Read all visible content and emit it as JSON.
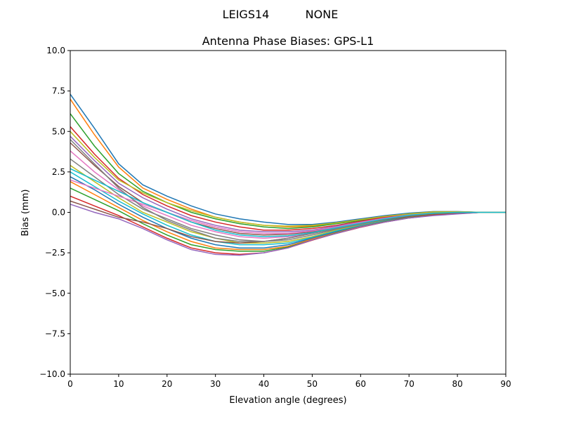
{
  "figure": {
    "suptitle_left": "LEIGS14",
    "suptitle_right": "NONE"
  },
  "chart_data": {
    "type": "line",
    "title": "Antenna Phase Biases: GPS-L1",
    "xlabel": "Elevation angle (degrees)",
    "ylabel": "Bias (mm)",
    "xlim": [
      0,
      90
    ],
    "ylim": [
      -10,
      10
    ],
    "xticks": [
      "0",
      "10",
      "20",
      "30",
      "40",
      "50",
      "60",
      "70",
      "80",
      "90"
    ],
    "yticks": [
      "−10.0",
      "−7.5",
      "−5.0",
      "−2.5",
      "0.0",
      "2.5",
      "5.0",
      "7.5",
      "10.0"
    ],
    "grid": false,
    "legend": "none",
    "colors": [
      "#1f77b4",
      "#ff7f0e",
      "#2ca02c",
      "#d62728",
      "#9467bd",
      "#8c564b",
      "#e377c2",
      "#7f7f7f",
      "#bcbd22",
      "#17becf"
    ],
    "x": [
      0,
      5,
      10,
      15,
      20,
      25,
      30,
      35,
      40,
      45,
      50,
      55,
      60,
      65,
      70,
      75,
      80,
      85,
      90
    ],
    "series": [
      {
        "values": [
          7.3,
          5.2,
          3.0,
          1.7,
          1.0,
          0.4,
          -0.1,
          -0.4,
          -0.6,
          -0.75,
          -0.75,
          -0.6,
          -0.4,
          -0.2,
          -0.05,
          0.05,
          0.05,
          0,
          0
        ]
      },
      {
        "values": [
          7.0,
          4.8,
          2.8,
          1.5,
          0.8,
          0.2,
          -0.3,
          -0.6,
          -0.8,
          -0.9,
          -0.85,
          -0.65,
          -0.45,
          -0.25,
          -0.1,
          0.03,
          0.04,
          0,
          0
        ]
      },
      {
        "values": [
          6.1,
          4.1,
          2.4,
          1.3,
          0.6,
          0.0,
          -0.4,
          -0.7,
          -0.9,
          -1.0,
          -0.9,
          -0.7,
          -0.5,
          -0.3,
          -0.1,
          0.02,
          0.03,
          0,
          0
        ]
      },
      {
        "values": [
          5.3,
          3.6,
          2.1,
          1.1,
          0.4,
          -0.2,
          -0.6,
          -0.9,
          -1.1,
          -1.1,
          -1.0,
          -0.8,
          -0.55,
          -0.3,
          -0.12,
          0,
          0.02,
          0,
          0
        ]
      },
      {
        "values": [
          4.7,
          3.2,
          1.8,
          0.9,
          0.2,
          -0.4,
          -0.8,
          -1.1,
          -1.2,
          -1.2,
          -1.1,
          -0.85,
          -0.6,
          -0.35,
          -0.15,
          -0.02,
          0.01,
          0,
          0
        ]
      },
      {
        "values": [
          4.3,
          2.9,
          1.6,
          0.6,
          0.0,
          -0.6,
          -1.0,
          -1.3,
          -1.4,
          -1.35,
          -1.2,
          -0.9,
          -0.65,
          -0.4,
          -0.18,
          -0.05,
          0,
          0,
          0
        ]
      },
      {
        "values": [
          3.8,
          2.5,
          1.4,
          0.4,
          -0.2,
          -0.8,
          -1.2,
          -1.5,
          -1.6,
          -1.5,
          -1.3,
          -1.0,
          -0.7,
          -0.42,
          -0.2,
          -0.07,
          -0.01,
          0,
          0
        ]
      },
      {
        "values": [
          3.3,
          2.2,
          1.1,
          0.2,
          -0.4,
          -1.0,
          -1.4,
          -1.7,
          -1.8,
          -1.7,
          -1.4,
          -1.05,
          -0.75,
          -0.45,
          -0.22,
          -0.08,
          -0.02,
          0,
          0
        ]
      },
      {
        "values": [
          2.9,
          1.9,
          0.9,
          0.0,
          -0.6,
          -1.2,
          -1.6,
          -1.9,
          -1.9,
          -1.8,
          -1.5,
          -1.1,
          -0.8,
          -0.5,
          -0.25,
          -0.1,
          -0.03,
          0,
          0
        ]
      },
      {
        "values": [
          2.5,
          1.6,
          0.7,
          -0.1,
          -0.8,
          -1.4,
          -1.8,
          -2.0,
          -2.0,
          -1.9,
          -1.55,
          -1.15,
          -0.82,
          -0.52,
          -0.27,
          -0.12,
          -0.04,
          0,
          0
        ]
      },
      {
        "values": [
          2.2,
          1.4,
          0.5,
          -0.3,
          -1.0,
          -1.6,
          -2.0,
          -2.2,
          -2.2,
          -2.0,
          -1.6,
          -1.2,
          -0.85,
          -0.55,
          -0.3,
          -0.14,
          -0.05,
          0,
          0
        ]
      },
      {
        "values": [
          1.9,
          1.1,
          0.3,
          -0.5,
          -1.2,
          -1.8,
          -2.2,
          -2.3,
          -2.3,
          -2.1,
          -1.65,
          -1.25,
          -0.88,
          -0.57,
          -0.32,
          -0.16,
          -0.06,
          0,
          0
        ]
      },
      {
        "values": [
          1.5,
          0.8,
          0.1,
          -0.7,
          -1.4,
          -2.0,
          -2.3,
          -2.4,
          -2.4,
          -2.15,
          -1.7,
          -1.28,
          -0.9,
          -0.58,
          -0.33,
          -0.17,
          -0.07,
          0,
          0
        ]
      },
      {
        "values": [
          1.0,
          0.4,
          -0.2,
          -0.9,
          -1.6,
          -2.2,
          -2.5,
          -2.6,
          -2.5,
          -2.2,
          -1.72,
          -1.3,
          -0.92,
          -0.6,
          -0.35,
          -0.18,
          -0.08,
          0,
          0
        ]
      },
      {
        "values": [
          0.5,
          0.0,
          -0.4,
          -1.0,
          -1.7,
          -2.3,
          -2.6,
          -2.65,
          -2.5,
          -2.2,
          -1.7,
          -1.3,
          -0.9,
          -0.6,
          -0.35,
          -0.2,
          -0.1,
          0,
          0
        ]
      },
      {
        "values": [
          0.7,
          0.2,
          -0.3,
          -0.6,
          -1.0,
          -1.5,
          -1.8,
          -1.9,
          -1.8,
          -1.6,
          -1.3,
          -1.0,
          -0.7,
          -0.45,
          -0.25,
          -0.1,
          -0.03,
          0,
          0
        ]
      },
      {
        "values": [
          2.0,
          1.5,
          1.0,
          0.5,
          0.0,
          -0.5,
          -0.9,
          -1.2,
          -1.3,
          -1.3,
          -1.15,
          -0.9,
          -0.62,
          -0.37,
          -0.17,
          -0.04,
          0,
          0,
          0
        ]
      },
      {
        "values": [
          4.5,
          3.0,
          1.5,
          0.3,
          -0.5,
          -1.1,
          -1.6,
          -1.8,
          -1.8,
          -1.6,
          -1.3,
          -1.0,
          -0.7,
          -0.42,
          -0.2,
          -0.07,
          -0.01,
          0,
          0
        ]
      },
      {
        "values": [
          5.0,
          3.4,
          2.0,
          1.2,
          0.6,
          0.1,
          -0.3,
          -0.6,
          -0.8,
          -0.85,
          -0.8,
          -0.65,
          -0.45,
          -0.25,
          -0.1,
          0.02,
          0.03,
          0,
          0
        ]
      },
      {
        "values": [
          2.7,
          2.0,
          1.3,
          0.6,
          0.0,
          -0.6,
          -1.1,
          -1.4,
          -1.5,
          -1.45,
          -1.25,
          -0.95,
          -0.67,
          -0.4,
          -0.18,
          -0.05,
          0,
          0,
          0
        ]
      }
    ]
  }
}
